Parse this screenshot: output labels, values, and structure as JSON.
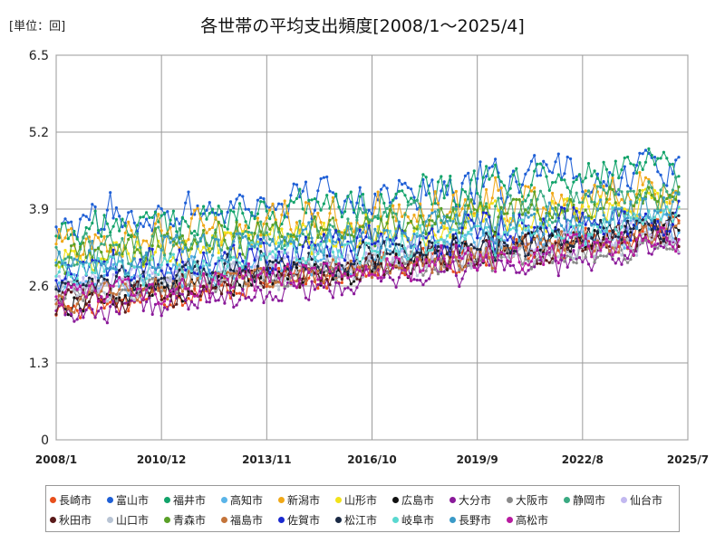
{
  "chart_data": {
    "type": "line",
    "title": "各世帯の平均支出頻度[2008/1～2025/4]",
    "unit_label": "[単位：回]",
    "x_range": [
      "2008/1",
      "2025/7"
    ],
    "x_ticks": [
      "2008/1",
      "2010/12",
      "2013/11",
      "2016/10",
      "2019/9",
      "2022/8",
      "2025/7"
    ],
    "ylim": [
      0,
      6.5
    ],
    "y_ticks": [
      "0",
      "1.3",
      "2.6",
      "3.9",
      "5.2",
      "6.5"
    ],
    "grid": true,
    "legend_position": "bottom",
    "series": [
      {
        "name": "長崎市",
        "color": "#e8501c",
        "start": 2.2,
        "end": 3.6,
        "noise": 0.3
      },
      {
        "name": "富山市",
        "color": "#1e5fd6",
        "start": 3.7,
        "end": 4.6,
        "noise": 0.45
      },
      {
        "name": "福井市",
        "color": "#12a36a",
        "start": 3.5,
        "end": 4.6,
        "noise": 0.4
      },
      {
        "name": "高知市",
        "color": "#5ab4e8",
        "start": 2.6,
        "end": 3.6,
        "noise": 0.3
      },
      {
        "name": "新潟市",
        "color": "#f0a818",
        "start": 3.3,
        "end": 4.3,
        "noise": 0.45
      },
      {
        "name": "山形市",
        "color": "#f2e21a",
        "start": 3.0,
        "end": 4.0,
        "noise": 0.35
      },
      {
        "name": "広島市",
        "color": "#111111",
        "start": 2.3,
        "end": 3.6,
        "noise": 0.3
      },
      {
        "name": "大分市",
        "color": "#8a1a9a",
        "start": 2.1,
        "end": 3.2,
        "noise": 0.3
      },
      {
        "name": "大阪市",
        "color": "#8a8a8a",
        "start": 2.5,
        "end": 3.3,
        "noise": 0.25
      },
      {
        "name": "静岡市",
        "color": "#3aaa82",
        "start": 3.1,
        "end": 4.2,
        "noise": 0.35
      },
      {
        "name": "仙台市",
        "color": "#c2b8f0",
        "start": 2.6,
        "end": 3.6,
        "noise": 0.3
      },
      {
        "name": "秋田市",
        "color": "#5a1a1a",
        "start": 2.3,
        "end": 3.5,
        "noise": 0.3
      },
      {
        "name": "山口市",
        "color": "#b8c4d4",
        "start": 2.5,
        "end": 3.4,
        "noise": 0.3
      },
      {
        "name": "青森市",
        "color": "#5aa028",
        "start": 3.1,
        "end": 4.1,
        "noise": 0.35
      },
      {
        "name": "福島市",
        "color": "#c4743a",
        "start": 2.4,
        "end": 3.5,
        "noise": 0.3
      },
      {
        "name": "佐賀市",
        "color": "#1a2ad0",
        "start": 2.8,
        "end": 3.8,
        "noise": 0.4
      },
      {
        "name": "松江市",
        "color": "#1a2a44",
        "start": 2.6,
        "end": 3.6,
        "noise": 0.3
      },
      {
        "name": "岐阜市",
        "color": "#5ad8d0",
        "start": 2.8,
        "end": 3.7,
        "noise": 0.35
      },
      {
        "name": "長野市",
        "color": "#3a9ac8",
        "start": 3.0,
        "end": 3.9,
        "noise": 0.35
      },
      {
        "name": "高松市",
        "color": "#b81aa0",
        "start": 2.4,
        "end": 3.4,
        "noise": 0.3
      }
    ]
  }
}
